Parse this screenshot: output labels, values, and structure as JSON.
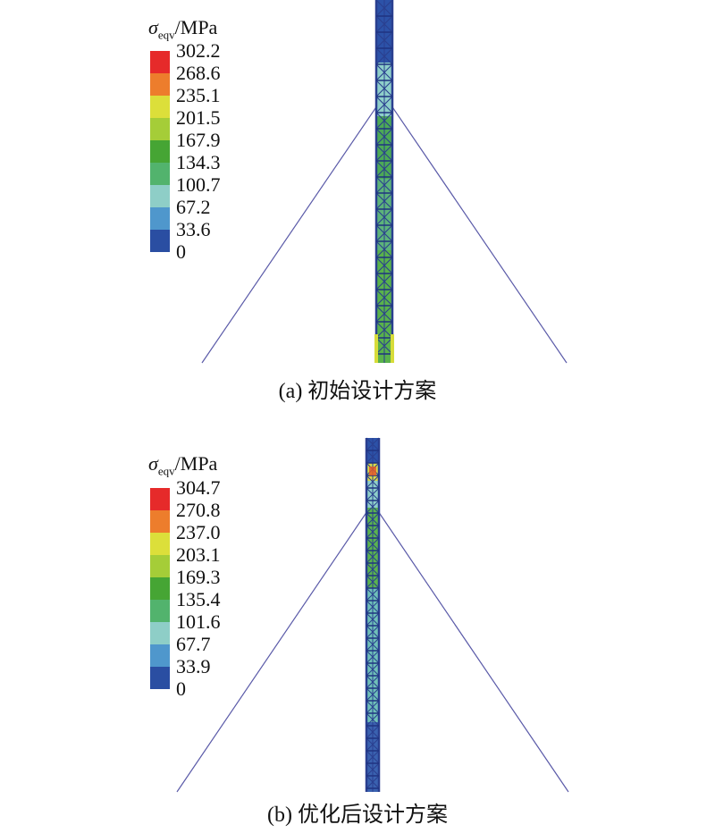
{
  "legend_unit": "/MPa",
  "legend_symbol": "σ",
  "legend_subscript": "eqv",
  "color_scale": [
    "#e62a2a",
    "#ed7d2c",
    "#dcdf3a",
    "#a5cd38",
    "#46a534",
    "#52b36d",
    "#8ecec7",
    "#4f97cc",
    "#2a4ea2"
  ],
  "panels": [
    {
      "id": "a",
      "caption": "(a) 初始设计方案",
      "ticks": [
        "302.2",
        "268.6",
        "235.1",
        "201.5",
        "167.9",
        "134.3",
        "100.7",
        "67.2",
        "33.6",
        "0"
      ]
    },
    {
      "id": "b",
      "caption": "(b) 优化后设计方案",
      "ticks": [
        "304.7",
        "270.8",
        "237.0",
        "203.1",
        "169.3",
        "135.4",
        "101.6",
        "67.7",
        "33.9",
        "0"
      ]
    }
  ]
}
